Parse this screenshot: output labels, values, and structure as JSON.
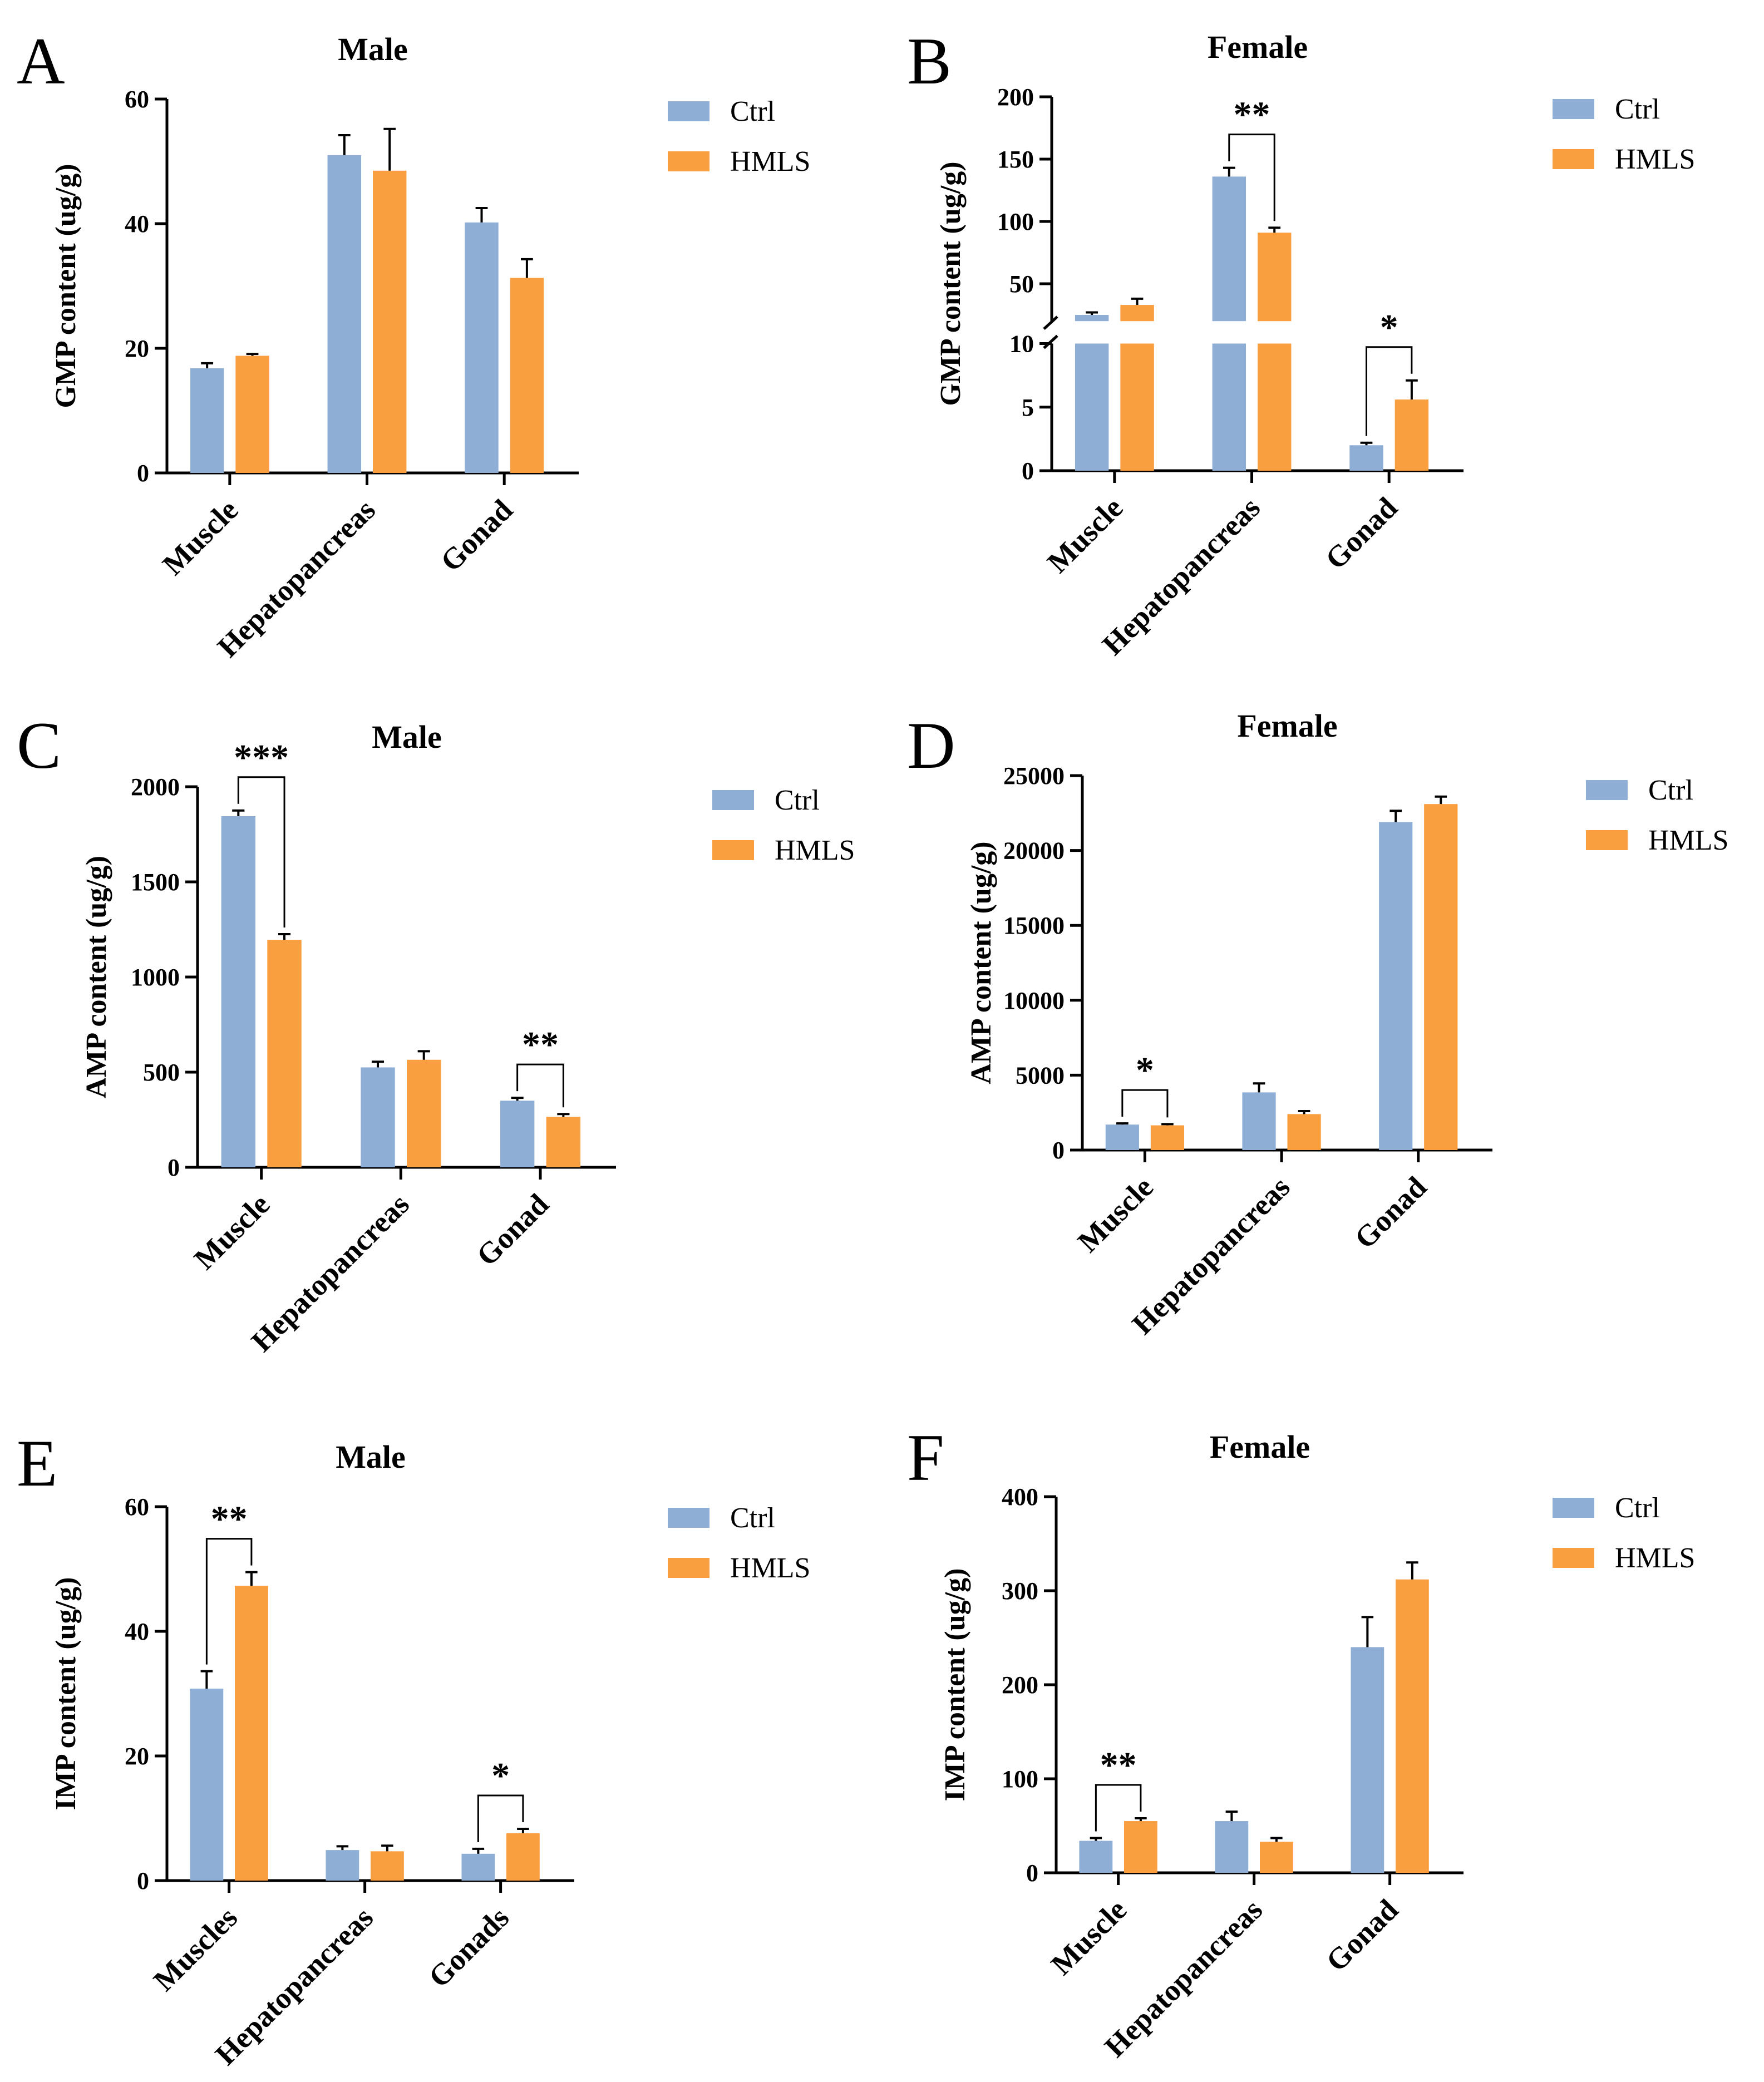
{
  "colors": {
    "ctrl": "#8eaed5",
    "hmls": "#fa9f40",
    "axis": "#000000"
  },
  "chart_data": [
    {
      "panel": "A",
      "type": "bar",
      "title": "Male",
      "ylabel": "GMP content (ug/g)",
      "xlabel": "",
      "categories": [
        "Muscle",
        "Hepatopancreas",
        "Gonad"
      ],
      "ylim": [
        0,
        60
      ],
      "yticks": [
        "0",
        "20",
        "40",
        "60"
      ],
      "legend": [
        "Ctrl",
        "HMLS"
      ],
      "series": [
        {
          "name": "Ctrl",
          "values": [
            16.8,
            51.0,
            40.2
          ],
          "errors": [
            0.8,
            3.2,
            2.3
          ]
        },
        {
          "name": "HMLS",
          "values": [
            18.8,
            48.5,
            31.3
          ],
          "errors": [
            0.3,
            6.7,
            3.0
          ]
        }
      ],
      "significance": []
    },
    {
      "panel": "B",
      "type": "bar",
      "title": "Female",
      "ylabel": "GMP content (ug/g)",
      "xlabel": "",
      "categories": [
        "Muscle",
        "Hepatopancreas",
        "Gonad"
      ],
      "ylim": [
        0,
        200
      ],
      "axis_break": [
        10,
        20
      ],
      "yticks": [
        "0",
        "5",
        "10",
        "50",
        "100",
        "150",
        "200"
      ],
      "legend": [
        "Ctrl",
        "HMLS"
      ],
      "series": [
        {
          "name": "Ctrl",
          "values": [
            25,
            136,
            2.0
          ],
          "errors": [
            2,
            7,
            0.2
          ]
        },
        {
          "name": "HMLS",
          "values": [
            33,
            91,
            5.6
          ],
          "errors": [
            5,
            4,
            1.5
          ]
        }
      ],
      "significance": [
        {
          "category": 1,
          "label": "**"
        },
        {
          "category": 2,
          "label": "*"
        }
      ]
    },
    {
      "panel": "C",
      "type": "bar",
      "title": "Male",
      "ylabel": "AMP content (ug/g)",
      "xlabel": "",
      "categories": [
        "Muscle",
        "Hepatopancreas",
        "Gonad"
      ],
      "ylim": [
        0,
        2000
      ],
      "yticks": [
        "0",
        "500",
        "1000",
        "1500",
        "2000"
      ],
      "legend": [
        "Ctrl",
        "HMLS"
      ],
      "series": [
        {
          "name": "Ctrl",
          "values": [
            1845,
            525,
            350
          ],
          "errors": [
            30,
            30,
            15
          ]
        },
        {
          "name": "HMLS",
          "values": [
            1195,
            565,
            265
          ],
          "errors": [
            30,
            45,
            15
          ]
        }
      ],
      "significance": [
        {
          "category": 0,
          "label": "***"
        },
        {
          "category": 2,
          "label": "**"
        }
      ]
    },
    {
      "panel": "D",
      "type": "bar",
      "title": "Female",
      "ylabel": "AMP content (ug/g)",
      "xlabel": "",
      "categories": [
        "Muscle",
        "Hepatopancreas",
        "Gonad"
      ],
      "ylim": [
        0,
        25000
      ],
      "yticks": [
        "0",
        "5000",
        "10000",
        "15000",
        "20000",
        "25000"
      ],
      "legend": [
        "Ctrl",
        "HMLS"
      ],
      "series": [
        {
          "name": "Ctrl",
          "values": [
            1700,
            3850,
            21900
          ],
          "errors": [
            80,
            600,
            750
          ]
        },
        {
          "name": "HMLS",
          "values": [
            1650,
            2400,
            23100
          ],
          "errors": [
            80,
            200,
            500
          ]
        }
      ],
      "significance": [
        {
          "category": 0,
          "label": "*"
        }
      ]
    },
    {
      "panel": "E",
      "type": "bar",
      "title": "Male",
      "ylabel": "IMP content (ug/g)",
      "xlabel": "",
      "categories": [
        "Muscles",
        "Hepatopancreas",
        "Gonads"
      ],
      "ylim": [
        0,
        60
      ],
      "yticks": [
        "0",
        "20",
        "40",
        "60"
      ],
      "legend": [
        "Ctrl",
        "HMLS"
      ],
      "series": [
        {
          "name": "Ctrl",
          "values": [
            30.8,
            4.9,
            4.3
          ],
          "errors": [
            2.8,
            0.6,
            0.8
          ]
        },
        {
          "name": "HMLS",
          "values": [
            47.3,
            4.7,
            7.6
          ],
          "errors": [
            2.2,
            0.9,
            0.7
          ]
        }
      ],
      "significance": [
        {
          "category": 0,
          "label": "**"
        },
        {
          "category": 2,
          "label": "*"
        }
      ]
    },
    {
      "panel": "F",
      "type": "bar",
      "title": "Female",
      "ylabel": "IMP content (ug/g)",
      "xlabel": "",
      "categories": [
        "Muscle",
        "Hepatopancreas",
        "Gonad"
      ],
      "ylim": [
        0,
        400
      ],
      "yticks": [
        "0",
        "100",
        "200",
        "300",
        "400"
      ],
      "legend": [
        "Ctrl",
        "HMLS"
      ],
      "series": [
        {
          "name": "Ctrl",
          "values": [
            34,
            55,
            240
          ],
          "errors": [
            3,
            10,
            32
          ]
        },
        {
          "name": "HMLS",
          "values": [
            55,
            33,
            312
          ],
          "errors": [
            3,
            4,
            18
          ]
        }
      ],
      "significance": [
        {
          "category": 0,
          "label": "**"
        }
      ]
    }
  ]
}
